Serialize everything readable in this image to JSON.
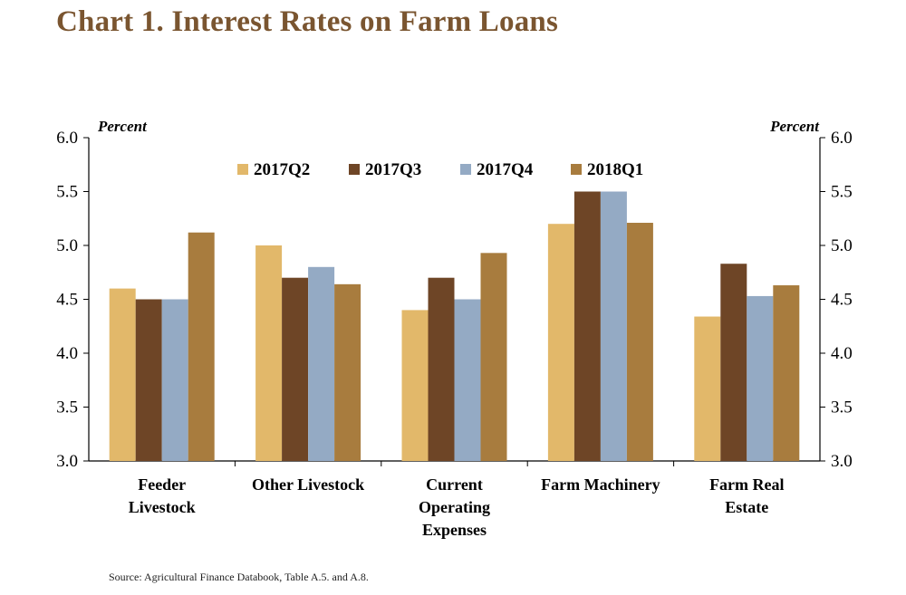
{
  "page": {
    "title": "Chart 1. Interest Rates on Farm Loans",
    "source": "Source: Agricultural Finance Databook, Table A.5. and A.8."
  },
  "chart_data": {
    "type": "bar",
    "title": "Chart 1. Interest Rates on Farm Loans",
    "ylabel_left": "Percent",
    "ylabel_right": "Percent",
    "ylim": [
      3.0,
      6.0
    ],
    "yticks": [
      "3.0",
      "3.5",
      "4.0",
      "4.5",
      "5.0",
      "5.5",
      "6.0"
    ],
    "legend_position": "top-center",
    "categories": [
      [
        "Feeder",
        "Livestock"
      ],
      [
        "Other Livestock"
      ],
      [
        "Current",
        "Operating",
        "Expenses"
      ],
      [
        "Farm Machinery"
      ],
      [
        "Farm Real",
        "Estate"
      ]
    ],
    "series": [
      {
        "name": "2017Q2",
        "color": "#e2b86a",
        "values": [
          4.6,
          5.0,
          4.4,
          5.2,
          4.34
        ]
      },
      {
        "name": "2017Q3",
        "color": "#6e4526",
        "values": [
          4.5,
          4.7,
          4.7,
          5.5,
          4.83
        ]
      },
      {
        "name": "2017Q4",
        "color": "#94aac4",
        "values": [
          4.5,
          4.8,
          4.5,
          5.5,
          4.53
        ]
      },
      {
        "name": "2018Q1",
        "color": "#a87c3e",
        "values": [
          5.12,
          4.64,
          4.93,
          5.21,
          4.63
        ]
      }
    ]
  }
}
